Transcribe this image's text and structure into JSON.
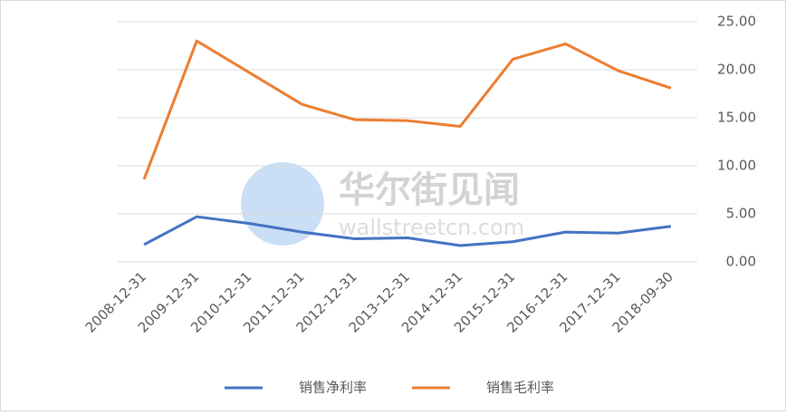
{
  "chart_data": {
    "type": "line",
    "categories": [
      "2008-12-31",
      "2009-12-31",
      "2010-12-31",
      "2011-12-31",
      "2012-12-31",
      "2013-12-31",
      "2014-12-31",
      "2015-12-31",
      "2016-12-31",
      "2017-12-31",
      "2018-09-30"
    ],
    "series": [
      {
        "name": "销售净利率",
        "color": "#4472c4",
        "values": [
          1.8,
          4.7,
          4.0,
          3.1,
          2.4,
          2.5,
          1.7,
          2.1,
          3.1,
          3.0,
          3.7
        ]
      },
      {
        "name": "销售毛利率",
        "color": "#ed7d31",
        "values": [
          8.6,
          23.0,
          19.7,
          16.4,
          14.8,
          14.7,
          14.1,
          21.1,
          22.7,
          19.9,
          18.1
        ]
      }
    ],
    "ylim": [
      0,
      25
    ],
    "yticks": [
      {
        "value": 0,
        "label": "0.00"
      },
      {
        "value": 5,
        "label": "5.00"
      },
      {
        "value": 10,
        "label": "10.00"
      },
      {
        "value": 15,
        "label": "15.00"
      },
      {
        "value": 20,
        "label": "20.00"
      },
      {
        "value": 25,
        "label": "25.00"
      }
    ],
    "y_axis_side": "right",
    "grid": true,
    "legend": "bottom",
    "watermark": {
      "title": "华尔街见闻",
      "url": "wallstreetcn.com"
    }
  }
}
